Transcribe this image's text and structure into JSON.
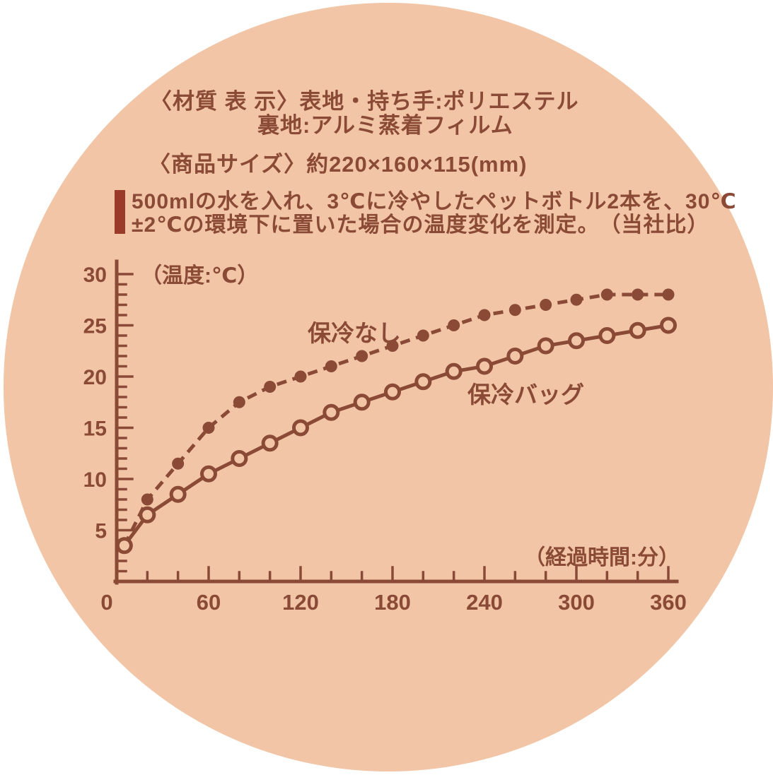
{
  "background": {
    "page_color": "#ffffff",
    "circle_color": "#f1c5a6",
    "ink_color": "#8a4a36",
    "accent_bar_color": "#9a3a28"
  },
  "header": {
    "material_label": "〈材質 表 示〉",
    "material_line1": "表地・持ち手:ポリエステル",
    "material_line2": "裏地:アルミ蒸着フィルム",
    "size_line": "〈商品サイズ〉約220×160×115(mm)"
  },
  "note": {
    "line1": "500mlの水を入れ、3℃に冷やしたペットボトル2本を、30℃",
    "line2": "±2℃の環境下に置いた場合の温度変化を測定。",
    "line2_right": "（当社比）"
  },
  "chart_data": {
    "type": "line",
    "title": "",
    "xlabel": "（経過時間:分）",
    "ylabel": "（温度:℃）",
    "x": [
      5,
      20,
      40,
      60,
      80,
      100,
      120,
      140,
      160,
      180,
      200,
      220,
      240,
      260,
      280,
      300,
      320,
      340,
      360
    ],
    "series": [
      {
        "name": "保冷なし",
        "style": "dashed-filled-dots",
        "values": [
          3.5,
          8,
          11.5,
          15,
          17.5,
          19,
          20,
          21,
          22,
          23,
          24,
          25,
          26,
          26.5,
          27,
          27.5,
          28,
          28,
          28
        ]
      },
      {
        "name": "保冷バッグ",
        "style": "solid-open-dots",
        "values": [
          3.5,
          6.5,
          8.5,
          10.5,
          12,
          13.5,
          15,
          16.5,
          17.5,
          18.5,
          19.5,
          20.5,
          21,
          22,
          23,
          23.5,
          24,
          24.5,
          25
        ]
      }
    ],
    "xlim": [
      0,
      360
    ],
    "ylim": [
      0,
      30
    ],
    "x_major_ticks": [
      0,
      60,
      120,
      180,
      240,
      300,
      360
    ],
    "x_minor_step": 20,
    "y_major_step": 5,
    "y_minor_step": 1,
    "grid": "off",
    "legend_position": "inline-labels"
  }
}
